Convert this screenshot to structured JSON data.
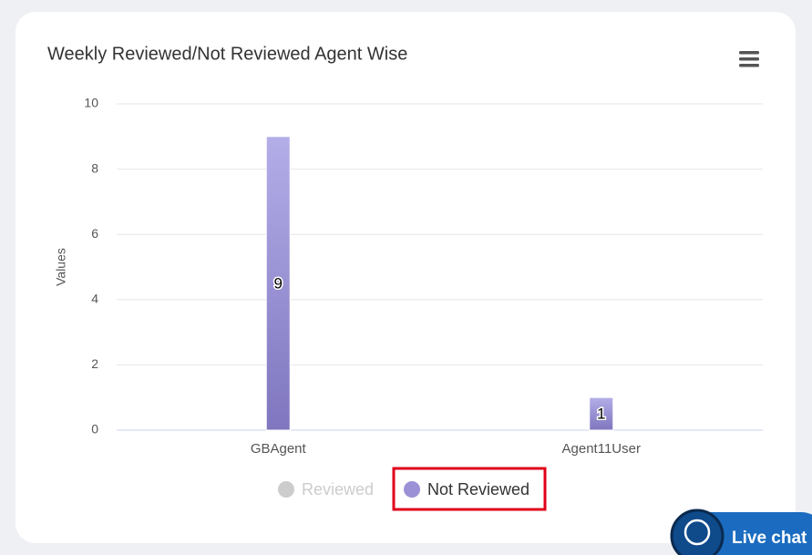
{
  "chart_data": {
    "type": "bar",
    "title": "Weekly Reviewed/Not Reviewed Agent Wise",
    "y_label": "Values",
    "categories": [
      "GBAgent",
      "Agent11User"
    ],
    "series": [
      {
        "name": "Reviewed",
        "color": "#cccccc",
        "visible": false,
        "values": [
          null,
          null
        ]
      },
      {
        "name": "Not Reviewed",
        "color": "#9b91d6",
        "visible": true,
        "values": [
          9,
          1
        ]
      }
    ],
    "ylim": [
      0,
      10
    ],
    "yticks": [
      0,
      2,
      4,
      6,
      8,
      10
    ],
    "grid": true,
    "data_labels": true
  },
  "live_chat": "Live chat"
}
